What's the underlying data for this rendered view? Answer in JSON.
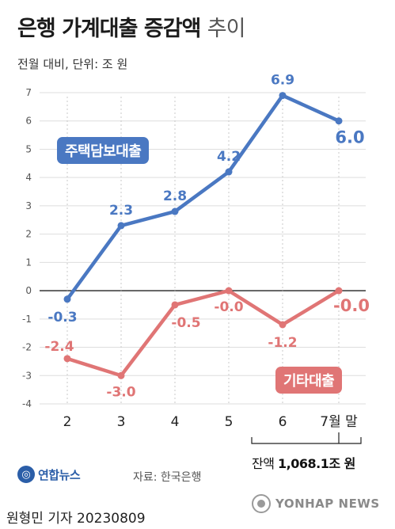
{
  "header": {
    "title": "은행 가계대출 증감액",
    "title_suffix": "추이",
    "subtitle": "전월 대비, 단위: 조 원"
  },
  "chart_data": {
    "type": "line",
    "categories": [
      "2",
      "3",
      "4",
      "5",
      "6",
      "7월 말"
    ],
    "ylim": [
      -4,
      7
    ],
    "yticks": [
      7,
      6,
      5,
      4,
      3,
      2,
      1,
      0,
      -1,
      -2,
      -3,
      -4
    ],
    "grid": true,
    "series": [
      {
        "name": "주택담보대출",
        "color": "#4a78c2",
        "values": [
          -0.3,
          2.3,
          2.8,
          4.2,
          6.9,
          6.0
        ],
        "labels": [
          "-0.3",
          "2.3",
          "2.8",
          "4.2",
          "6.9",
          "6.0"
        ]
      },
      {
        "name": "기타대출",
        "color": "#e07575",
        "values": [
          -2.4,
          -3.0,
          -0.5,
          -0.0,
          -1.2,
          -0.0
        ],
        "labels": [
          "-2.4",
          "-3.0",
          "-0.5",
          "-0.0",
          "-1.2",
          "-0.0"
        ]
      }
    ]
  },
  "balance": {
    "prefix": "잔액",
    "value": "1,068.1조 원"
  },
  "footer": {
    "logo_text": "연합뉴스",
    "source": "자료: 한국은행",
    "reporter": "원형민 기자  20230809",
    "agency": "YONHAP NEWS"
  },
  "icons": {
    "logo": "yonhap-logo-icon",
    "agency": "yonhap-agency-icon"
  }
}
